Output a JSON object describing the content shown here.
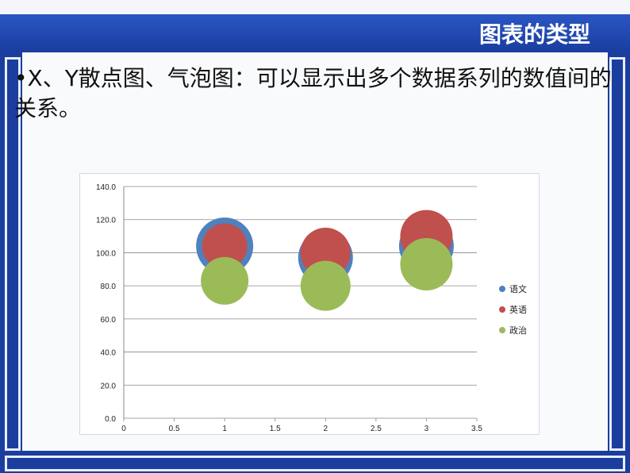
{
  "header": {
    "title": "图表的类型"
  },
  "content": {
    "bullet": "•X、Y散点图、气泡图：可以显示出多个数据系列的数值间的关系。"
  },
  "colors": {
    "frame": "#1a3d9e",
    "series_blue": "#4f81bd",
    "series_red": "#c0504d",
    "series_green": "#9bbb59"
  },
  "chart_data": {
    "type": "scatter",
    "title": "",
    "xlabel": "",
    "ylabel": "",
    "xlim": [
      0,
      3.5
    ],
    "ylim": [
      0,
      140
    ],
    "x_ticks": [
      "0",
      "0.5",
      "1",
      "1.5",
      "2",
      "2.5",
      "3",
      "3.5"
    ],
    "y_ticks": [
      "0.0",
      "20.0",
      "40.0",
      "60.0",
      "80.0",
      "100.0",
      "120.0",
      "140.0"
    ],
    "grid": true,
    "legend_position": "right",
    "series": [
      {
        "name": "语文",
        "color": "#4f81bd",
        "points": [
          {
            "x": 1,
            "y": 104,
            "size": 1.2
          },
          {
            "x": 2,
            "y": 97,
            "size": 1.15
          },
          {
            "x": 3,
            "y": 104,
            "size": 1.15
          }
        ]
      },
      {
        "name": "英语",
        "color": "#c0504d",
        "points": [
          {
            "x": 1,
            "y": 104,
            "size": 0.95
          },
          {
            "x": 2,
            "y": 100,
            "size": 1.05
          },
          {
            "x": 3,
            "y": 110,
            "size": 1.1
          }
        ]
      },
      {
        "name": "政治",
        "color": "#9bbb59",
        "points": [
          {
            "x": 1,
            "y": 83,
            "size": 1.0
          },
          {
            "x": 2,
            "y": 80,
            "size": 1.05
          },
          {
            "x": 3,
            "y": 93,
            "size": 1.1
          }
        ]
      }
    ]
  }
}
